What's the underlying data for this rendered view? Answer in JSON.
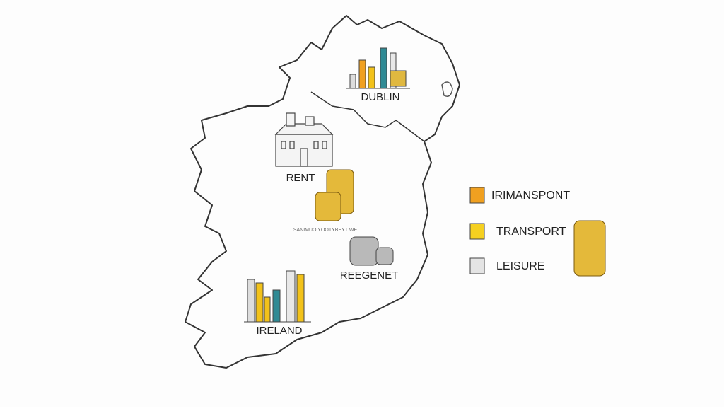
{
  "map": {
    "labels": {
      "dublin": "DUBLIN",
      "rent": "RENT",
      "small_note": "SANIMUO YOOTYBEYT WE",
      "regional": "REEGENET",
      "ireland": "IRELAND"
    },
    "legend": [
      "IRIMANSPONT",
      "TRANSPORT",
      "LEISURE"
    ]
  }
}
